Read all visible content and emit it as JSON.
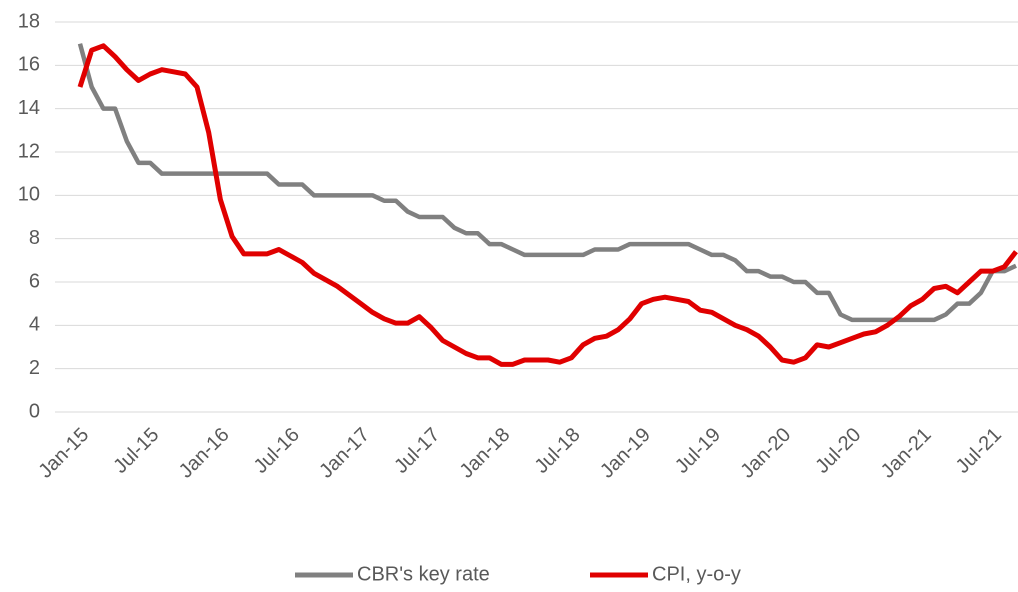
{
  "chart_data": {
    "type": "line",
    "categories": [
      "Jan-15",
      null,
      null,
      null,
      null,
      null,
      "Jul-15",
      null,
      null,
      null,
      null,
      null,
      "Jan-16",
      null,
      null,
      null,
      null,
      null,
      "Jul-16",
      null,
      null,
      null,
      null,
      null,
      "Jan-17",
      null,
      null,
      null,
      null,
      null,
      "Jul-17",
      null,
      null,
      null,
      null,
      null,
      "Jan-18",
      null,
      null,
      null,
      null,
      null,
      "Jul-18",
      null,
      null,
      null,
      null,
      null,
      "Jan-19",
      null,
      null,
      null,
      null,
      null,
      "Jul-19",
      null,
      null,
      null,
      null,
      null,
      "Jan-20",
      null,
      null,
      null,
      null,
      null,
      "Jul-20",
      null,
      null,
      null,
      null,
      null,
      "Jan-21",
      null,
      null,
      null,
      null,
      null,
      "Jul-21",
      null,
      null
    ],
    "series": [
      {
        "name": "CBR's key rate",
        "color": "#808080",
        "values": [
          17,
          15,
          14,
          14,
          12.5,
          11.5,
          11.5,
          11,
          11,
          11,
          11,
          11,
          11,
          11,
          11,
          11,
          11,
          10.5,
          10.5,
          10.5,
          10,
          10,
          10,
          10,
          10,
          10,
          9.75,
          9.75,
          9.25,
          9,
          9,
          9,
          8.5,
          8.25,
          8.25,
          7.75,
          7.75,
          7.5,
          7.25,
          7.25,
          7.25,
          7.25,
          7.25,
          7.25,
          7.5,
          7.5,
          7.5,
          7.75,
          7.75,
          7.75,
          7.75,
          7.75,
          7.75,
          7.5,
          7.25,
          7.25,
          7,
          6.5,
          6.5,
          6.25,
          6.25,
          6,
          6,
          5.5,
          5.5,
          4.5,
          4.25,
          4.25,
          4.25,
          4.25,
          4.25,
          4.25,
          4.25,
          4.25,
          4.5,
          5,
          5,
          5.5,
          6.5,
          6.5,
          6.75
        ]
      },
      {
        "name": "CPI, y-o-y",
        "color": "#e00000",
        "values": [
          15.0,
          16.7,
          16.9,
          16.4,
          15.8,
          15.3,
          15.6,
          15.8,
          15.7,
          15.6,
          15.0,
          12.9,
          9.8,
          8.1,
          7.3,
          7.3,
          7.3,
          7.5,
          7.2,
          6.9,
          6.4,
          6.1,
          5.8,
          5.4,
          5.0,
          4.6,
          4.3,
          4.1,
          4.1,
          4.4,
          3.9,
          3.3,
          3.0,
          2.7,
          2.5,
          2.5,
          2.2,
          2.2,
          2.4,
          2.4,
          2.4,
          2.3,
          2.5,
          3.1,
          3.4,
          3.5,
          3.8,
          4.3,
          5.0,
          5.2,
          5.3,
          5.2,
          5.1,
          4.7,
          4.6,
          4.3,
          4.0,
          3.8,
          3.5,
          3.0,
          2.4,
          2.3,
          2.5,
          3.1,
          3.0,
          3.2,
          3.4,
          3.6,
          3.7,
          4.0,
          4.4,
          4.9,
          5.2,
          5.7,
          5.8,
          5.5,
          6.0,
          6.5,
          6.5,
          6.7,
          7.4
        ]
      }
    ],
    "ylim": [
      0,
      18
    ],
    "yticks": [
      0,
      2,
      4,
      6,
      8,
      10,
      12,
      14,
      16,
      18
    ],
    "grid": true,
    "legend": "bottom"
  }
}
